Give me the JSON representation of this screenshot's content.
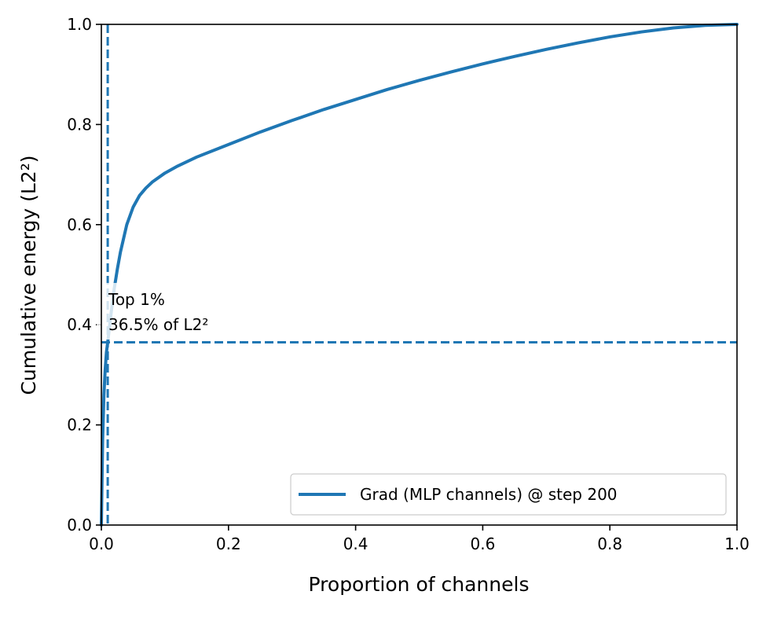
{
  "chart_data": {
    "type": "line",
    "xlabel": "Proportion of channels",
    "ylabel": "Cumulative energy (L2²)",
    "xlim": [
      0.0,
      1.0
    ],
    "ylim": [
      0.0,
      1.0
    ],
    "xticks": [
      "0.0",
      "0.2",
      "0.4",
      "0.6",
      "0.8",
      "1.0"
    ],
    "yticks": [
      "0.0",
      "0.2",
      "0.4",
      "0.6",
      "0.8",
      "1.0"
    ],
    "grid": false,
    "legend_position": "lower-right",
    "series": [
      {
        "name": "Grad (MLP channels) @ step 200",
        "color": "#1f77b4",
        "x": [
          0.0,
          0.002,
          0.004,
          0.006,
          0.008,
          0.01,
          0.015,
          0.02,
          0.025,
          0.03,
          0.04,
          0.05,
          0.06,
          0.07,
          0.08,
          0.1,
          0.12,
          0.15,
          0.2,
          0.25,
          0.3,
          0.35,
          0.4,
          0.45,
          0.5,
          0.55,
          0.6,
          0.65,
          0.7,
          0.75,
          0.8,
          0.85,
          0.9,
          0.95,
          1.0
        ],
        "y": [
          0.0,
          0.17,
          0.26,
          0.31,
          0.345,
          0.365,
          0.42,
          0.47,
          0.51,
          0.545,
          0.6,
          0.635,
          0.658,
          0.673,
          0.685,
          0.703,
          0.717,
          0.735,
          0.76,
          0.785,
          0.808,
          0.83,
          0.85,
          0.87,
          0.888,
          0.905,
          0.921,
          0.936,
          0.95,
          0.963,
          0.975,
          0.985,
          0.993,
          0.998,
          1.0
        ]
      }
    ],
    "reference_lines": {
      "vertical_x": 0.01,
      "horizontal_y": 0.365,
      "color": "#1f77b4",
      "style": "dashed"
    },
    "annotation": {
      "x": 0.01,
      "y": 0.365,
      "line1": "Top 1%",
      "line2": "36.5% of L2²"
    }
  }
}
